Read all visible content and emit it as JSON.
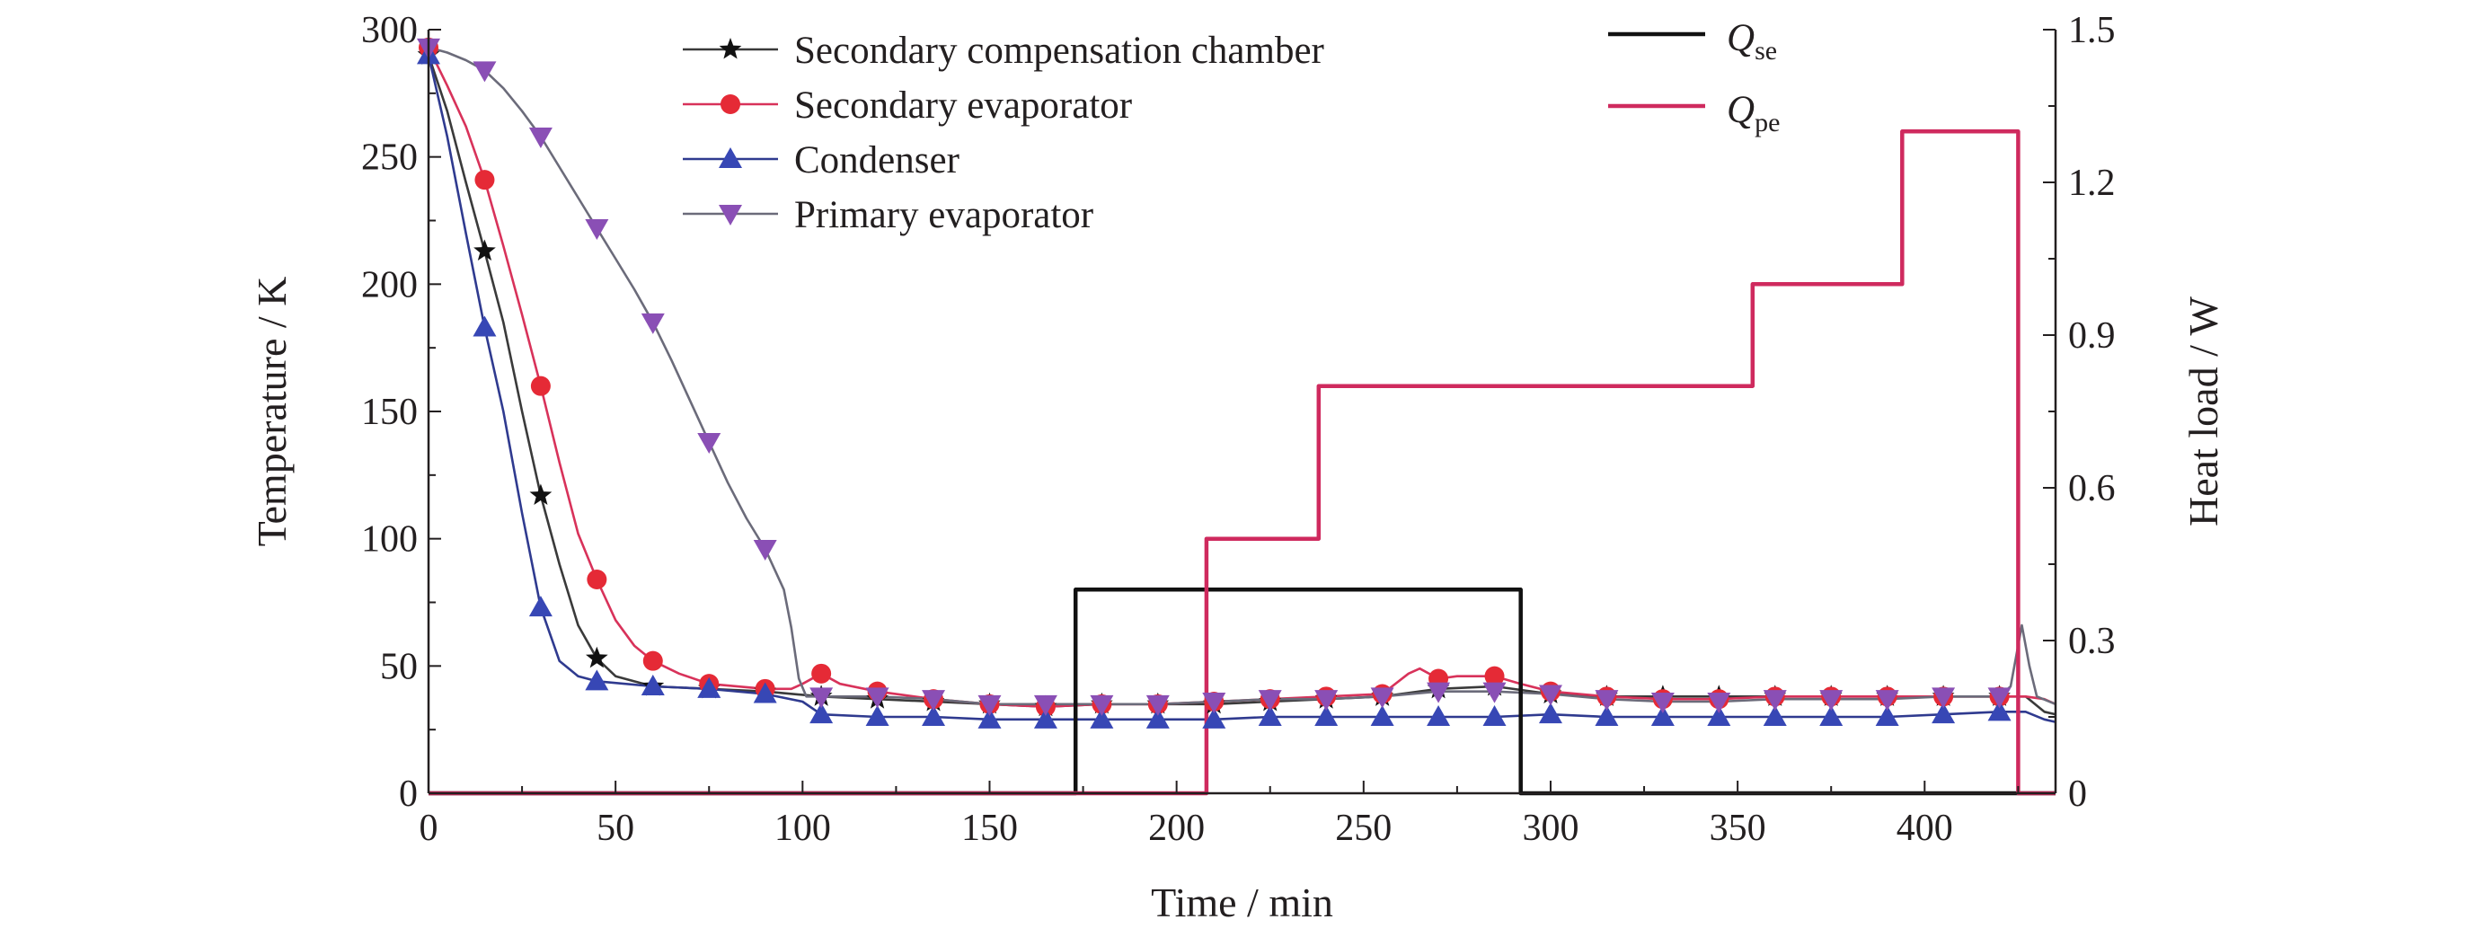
{
  "chart_data": {
    "type": "line",
    "x_axis": {
      "label": "Time / min",
      "range": [
        0,
        435
      ],
      "ticks": [
        0,
        50,
        100,
        150,
        200,
        250,
        300,
        350,
        400
      ]
    },
    "y_axis_left": {
      "label": "Temperature / K",
      "range": [
        0,
        300
      ],
      "ticks": [
        0,
        50,
        100,
        150,
        200,
        250,
        300
      ]
    },
    "y_axis_right": {
      "label": "Heat load / W",
      "range": [
        0,
        1.5
      ],
      "ticks": [
        "0",
        "0.3",
        "0.6",
        "0.9",
        "1.2",
        "1.5"
      ],
      "tick_values": [
        0,
        0.3,
        0.6,
        0.9,
        1.2,
        1.5
      ]
    },
    "grid": false,
    "legend_placement": "top-center",
    "series": [
      {
        "name": "Secondary compensation chamber",
        "axis": "left",
        "color": "#3a3a3a",
        "marker": "star",
        "marker_color": "#111111",
        "points": [
          [
            0,
            290
          ],
          [
            5,
            268
          ],
          [
            10,
            240
          ],
          [
            15,
            213
          ],
          [
            20,
            185
          ],
          [
            25,
            150
          ],
          [
            30,
            117
          ],
          [
            35,
            90
          ],
          [
            40,
            66
          ],
          [
            45,
            53
          ],
          [
            50,
            46
          ],
          [
            60,
            42
          ],
          [
            75,
            41
          ],
          [
            90,
            40
          ],
          [
            105,
            38
          ],
          [
            120,
            37
          ],
          [
            135,
            36
          ],
          [
            150,
            35
          ],
          [
            165,
            34
          ],
          [
            180,
            35
          ],
          [
            195,
            35
          ],
          [
            210,
            35
          ],
          [
            225,
            36
          ],
          [
            240,
            37
          ],
          [
            255,
            38
          ],
          [
            270,
            41
          ],
          [
            285,
            42
          ],
          [
            300,
            39
          ],
          [
            315,
            38
          ],
          [
            330,
            38
          ],
          [
            345,
            38
          ],
          [
            360,
            38
          ],
          [
            375,
            38
          ],
          [
            390,
            38
          ],
          [
            405,
            38
          ],
          [
            420,
            38
          ],
          [
            427,
            38
          ],
          [
            432,
            32
          ],
          [
            435,
            31
          ]
        ]
      },
      {
        "name": "Secondary evaporator",
        "axis": "left",
        "color": "#d8325a",
        "marker": "circle",
        "marker_color": "#e52a36",
        "points": [
          [
            0,
            293
          ],
          [
            5,
            278
          ],
          [
            10,
            262
          ],
          [
            15,
            241
          ],
          [
            20,
            215
          ],
          [
            25,
            188
          ],
          [
            30,
            160
          ],
          [
            35,
            130
          ],
          [
            40,
            102
          ],
          [
            45,
            84
          ],
          [
            50,
            68
          ],
          [
            55,
            58
          ],
          [
            60,
            52
          ],
          [
            67,
            47
          ],
          [
            75,
            43
          ],
          [
            90,
            41
          ],
          [
            97,
            41
          ],
          [
            100,
            43
          ],
          [
            105,
            47
          ],
          [
            110,
            43
          ],
          [
            120,
            40
          ],
          [
            135,
            37
          ],
          [
            150,
            35
          ],
          [
            165,
            34
          ],
          [
            180,
            35
          ],
          [
            195,
            35
          ],
          [
            210,
            36
          ],
          [
            225,
            37
          ],
          [
            240,
            38
          ],
          [
            255,
            39
          ],
          [
            262,
            47
          ],
          [
            265,
            49
          ],
          [
            270,
            45
          ],
          [
            275,
            46
          ],
          [
            285,
            46
          ],
          [
            292,
            43
          ],
          [
            300,
            40
          ],
          [
            315,
            38
          ],
          [
            330,
            37
          ],
          [
            345,
            37
          ],
          [
            360,
            38
          ],
          [
            375,
            38
          ],
          [
            390,
            38
          ],
          [
            405,
            38
          ],
          [
            420,
            38
          ],
          [
            427,
            38
          ],
          [
            432,
            37
          ],
          [
            435,
            35
          ]
        ]
      },
      {
        "name": "Condenser",
        "axis": "left",
        "color": "#2f3a8f",
        "marker": "triangle-up",
        "marker_color": "#3747b5",
        "points": [
          [
            0,
            290
          ],
          [
            5,
            258
          ],
          [
            10,
            220
          ],
          [
            15,
            183
          ],
          [
            20,
            150
          ],
          [
            25,
            110
          ],
          [
            30,
            73
          ],
          [
            35,
            52
          ],
          [
            40,
            46
          ],
          [
            45,
            44
          ],
          [
            60,
            42
          ],
          [
            75,
            41
          ],
          [
            90,
            39
          ],
          [
            100,
            36
          ],
          [
            105,
            31
          ],
          [
            120,
            30
          ],
          [
            135,
            30
          ],
          [
            150,
            29
          ],
          [
            165,
            29
          ],
          [
            180,
            29
          ],
          [
            195,
            29
          ],
          [
            210,
            29
          ],
          [
            225,
            30
          ],
          [
            240,
            30
          ],
          [
            255,
            30
          ],
          [
            270,
            30
          ],
          [
            285,
            30
          ],
          [
            300,
            31
          ],
          [
            315,
            30
          ],
          [
            330,
            30
          ],
          [
            345,
            30
          ],
          [
            360,
            30
          ],
          [
            375,
            30
          ],
          [
            390,
            30
          ],
          [
            405,
            31
          ],
          [
            420,
            32
          ],
          [
            427,
            32
          ],
          [
            432,
            29
          ],
          [
            435,
            28
          ]
        ]
      },
      {
        "name": "Primary evaporator",
        "axis": "left",
        "color": "#6b6b7a",
        "marker": "triangle-down",
        "marker_color": "#8a4fb5",
        "points": [
          [
            0,
            293
          ],
          [
            5,
            291
          ],
          [
            10,
            288
          ],
          [
            15,
            284
          ],
          [
            20,
            277
          ],
          [
            25,
            268
          ],
          [
            30,
            258
          ],
          [
            35,
            246
          ],
          [
            40,
            234
          ],
          [
            45,
            222
          ],
          [
            50,
            210
          ],
          [
            55,
            198
          ],
          [
            60,
            185
          ],
          [
            65,
            170
          ],
          [
            70,
            154
          ],
          [
            75,
            138
          ],
          [
            80,
            122
          ],
          [
            85,
            108
          ],
          [
            90,
            96
          ],
          [
            95,
            80
          ],
          [
            97,
            65
          ],
          [
            99,
            45
          ],
          [
            101,
            38
          ],
          [
            105,
            38
          ],
          [
            120,
            38
          ],
          [
            135,
            37
          ],
          [
            150,
            35
          ],
          [
            165,
            35
          ],
          [
            180,
            35
          ],
          [
            195,
            35
          ],
          [
            210,
            36
          ],
          [
            225,
            37
          ],
          [
            240,
            37
          ],
          [
            255,
            38
          ],
          [
            270,
            40
          ],
          [
            285,
            40
          ],
          [
            300,
            39
          ],
          [
            315,
            37
          ],
          [
            330,
            36
          ],
          [
            345,
            36
          ],
          [
            360,
            37
          ],
          [
            375,
            37
          ],
          [
            390,
            37
          ],
          [
            405,
            38
          ],
          [
            420,
            38
          ],
          [
            423,
            42
          ],
          [
            426,
            66
          ],
          [
            428,
            50
          ],
          [
            430,
            38
          ],
          [
            435,
            35
          ]
        ]
      },
      {
        "name": "Q_se",
        "name_main": "Q",
        "name_sub": "se",
        "axis": "right",
        "color": "#111111",
        "marker": "none",
        "step": true,
        "points": [
          [
            0,
            0
          ],
          [
            173,
            0
          ],
          [
            173,
            0.4
          ],
          [
            292,
            0.4
          ],
          [
            292,
            0
          ],
          [
            435,
            0
          ]
        ]
      },
      {
        "name": "Q_pe",
        "name_main": "Q",
        "name_sub": "pe",
        "axis": "right",
        "color": "#cf2a5e",
        "marker": "none",
        "step": true,
        "points": [
          [
            0,
            0
          ],
          [
            208,
            0
          ],
          [
            208,
            0.5
          ],
          [
            238,
            0.5
          ],
          [
            238,
            0.8
          ],
          [
            354,
            0.8
          ],
          [
            354,
            1.0
          ],
          [
            394,
            1.0
          ],
          [
            394,
            1.3
          ],
          [
            425,
            1.3
          ],
          [
            425,
            0
          ],
          [
            435,
            0
          ]
        ]
      }
    ],
    "marker_x": [
      0,
      15,
      30,
      45,
      60,
      75,
      90,
      105,
      120,
      135,
      150,
      165,
      180,
      195,
      210,
      225,
      240,
      255,
      270,
      285,
      300,
      315,
      330,
      345,
      360,
      375,
      390,
      405,
      420
    ]
  }
}
